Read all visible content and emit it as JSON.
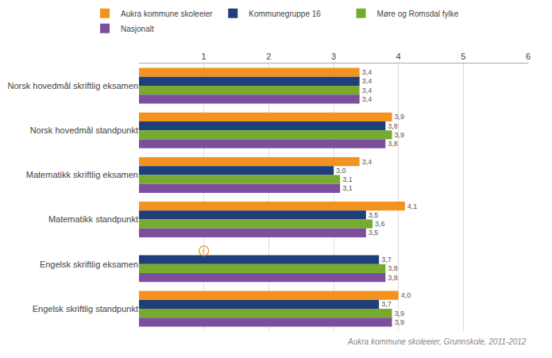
{
  "chart_data": {
    "type": "bar",
    "orientation": "horizontal",
    "categories": [
      "Norsk hovedmål skriftlig eksamen",
      "Norsk hovedmål standpunkt",
      "Matematikk skriftlig eksamen",
      "Matematikk standpunkt",
      "Engelsk skriftlig eksamen",
      "Engelsk skriftlig standpunkt"
    ],
    "series": [
      {
        "name": "Aukra kommune skoleeier",
        "color": "#F4921F",
        "values": [
          3.4,
          3.9,
          3.4,
          4.1,
          null,
          4.0
        ],
        "value_labels": [
          "3,4",
          "3,9",
          "3,4",
          "4,1",
          null,
          "4,0"
        ]
      },
      {
        "name": "Kommunegruppe 16",
        "color": "#1F3F7A",
        "values": [
          3.4,
          3.8,
          3.0,
          3.5,
          3.7,
          3.7
        ],
        "value_labels": [
          "3,4",
          "3,8",
          "3,0",
          "3,5",
          "3,7",
          "3,7"
        ]
      },
      {
        "name": "Møre og Romsdal fylke",
        "color": "#76AB2F",
        "values": [
          3.4,
          3.9,
          3.1,
          3.6,
          3.8,
          3.9
        ],
        "value_labels": [
          "3,4",
          "3,9",
          "3,1",
          "3,6",
          "3,8",
          "3,9"
        ]
      },
      {
        "name": "Nasjonalt",
        "color": "#7B4F9E",
        "values": [
          3.4,
          3.8,
          3.1,
          3.5,
          3.8,
          3.9
        ],
        "value_labels": [
          "3,4",
          "3,8",
          "3,1",
          "3,5",
          "3,8",
          "3,9"
        ]
      }
    ],
    "xlim": [
      0,
      6
    ],
    "xticks": [
      1,
      2,
      3,
      4,
      5,
      6
    ],
    "grid": true,
    "data_labels": true,
    "legend": "top",
    "annotations": [
      {
        "text": "i",
        "x": 1.0,
        "category": "Engelsk skriftlig eksamen",
        "series": "Aukra kommune skoleeier"
      },
      {
        "text": "Aukra kommune skoleeier, Grunnskole, 2011-2012"
      }
    ]
  }
}
